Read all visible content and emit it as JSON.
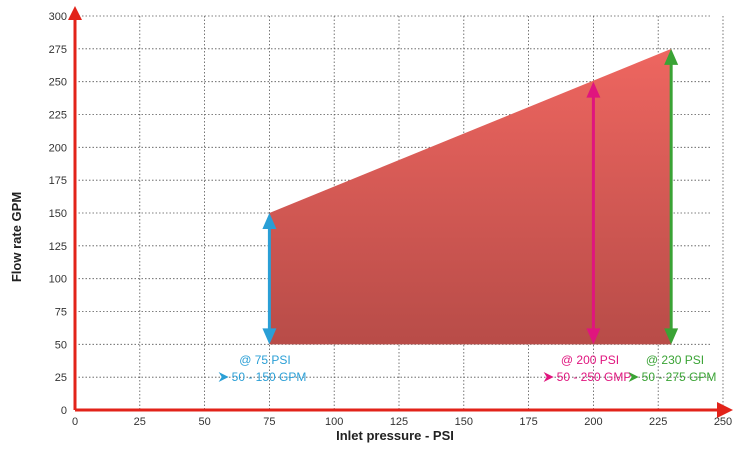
{
  "chart_data": {
    "type": "area",
    "title": "",
    "xlabel": "Inlet pressure - PSI",
    "ylabel": "Flow rate GPM",
    "xlim": [
      0,
      250
    ],
    "ylim": [
      0,
      300
    ],
    "x_ticks": [
      0,
      25,
      50,
      75,
      100,
      125,
      150,
      175,
      200,
      225,
      250
    ],
    "y_ticks": [
      0,
      25,
      50,
      75,
      100,
      125,
      150,
      175,
      200,
      225,
      250,
      275,
      300
    ],
    "grid": true,
    "area": {
      "x": [
        75,
        230
      ],
      "upper": [
        150,
        275
      ],
      "lower": [
        50,
        50
      ],
      "color": "#e05a55"
    },
    "ranges": [
      {
        "x": 75,
        "min": 50,
        "max": 150,
        "label1": "@ 75 PSI",
        "label2": "50 - 150 GPM",
        "color": "#2a9fd6"
      },
      {
        "x": 200,
        "min": 50,
        "max": 250,
        "label1": "@ 200 PSI",
        "label2": "50 - 250 GMP",
        "color": "#e0157e"
      },
      {
        "x": 230,
        "min": 50,
        "max": 275,
        "label1": "@ 230 PSI",
        "label2": "50 - 275 GPM",
        "color": "#3aa335"
      }
    ],
    "axis_color": "#e2231a"
  }
}
